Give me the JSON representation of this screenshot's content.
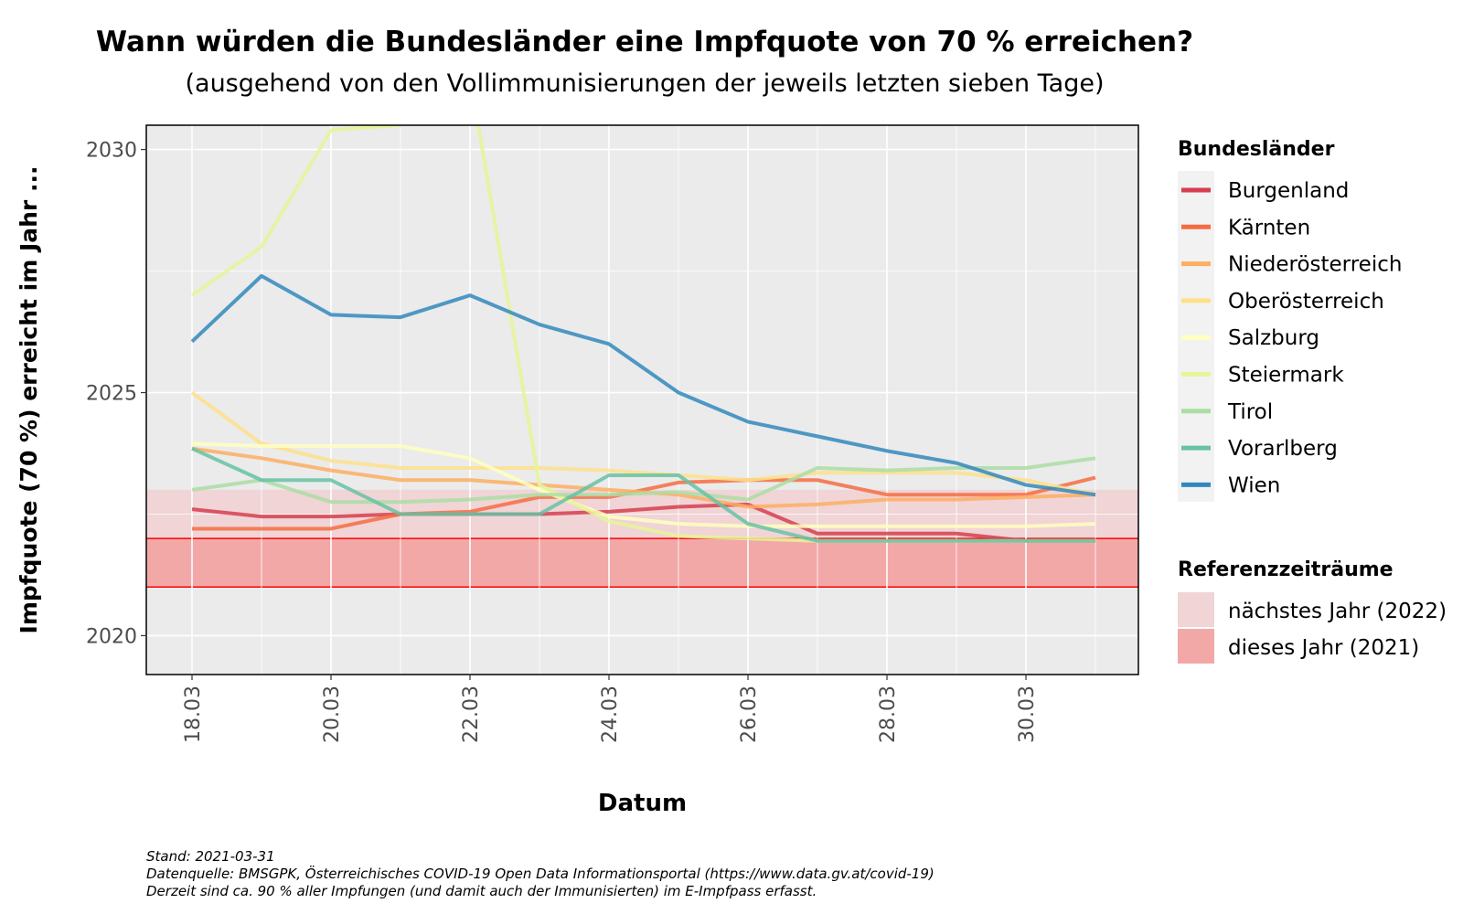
{
  "chart_data": {
    "type": "line",
    "title": "Wann würden die Bundesländer eine Impfquote von 70 % erreichen?",
    "subtitle": "(ausgehend von den Vollimmunisierungen der jeweils letzten sieben Tage)",
    "xlabel": "Datum",
    "ylabel": "Impfquote (70 %) erreicht im Jahr ...",
    "x": [
      "18.03",
      "19.03",
      "20.03",
      "21.03",
      "22.03",
      "23.03",
      "24.03",
      "25.03",
      "26.03",
      "27.03",
      "28.03",
      "29.03",
      "30.03",
      "31.03"
    ],
    "x_ticks": [
      "18.03",
      "20.03",
      "22.03",
      "24.03",
      "26.03",
      "28.03",
      "30.03"
    ],
    "ylim": [
      2019.2,
      2030.5
    ],
    "y_ticks": [
      2020,
      2025,
      2030
    ],
    "grid": true,
    "legend_title": "Bundesländer",
    "legend_position": "right",
    "series": [
      {
        "name": "Burgenland",
        "color": "#d53e4f",
        "values": [
          2022.6,
          2022.45,
          2022.45,
          2022.5,
          2022.5,
          2022.5,
          2022.55,
          2022.65,
          2022.7,
          2022.1,
          2022.1,
          2022.1,
          2021.95,
          2021.95
        ]
      },
      {
        "name": "Kärnten",
        "color": "#f46d43",
        "values": [
          2022.2,
          2022.2,
          2022.2,
          2022.5,
          2022.55,
          2022.85,
          2022.85,
          2023.15,
          2023.2,
          2023.2,
          2022.9,
          2022.9,
          2022.9,
          2023.25
        ]
      },
      {
        "name": "Niederösterreich",
        "color": "#fdae61",
        "values": [
          2023.85,
          2023.65,
          2023.4,
          2023.2,
          2023.2,
          2023.1,
          2023.0,
          2022.9,
          2022.65,
          2022.7,
          2022.8,
          2022.8,
          2022.85,
          2022.9
        ]
      },
      {
        "name": "Oberösterreich",
        "color": "#fee08b",
        "values": [
          2025.0,
          2023.95,
          2023.6,
          2023.45,
          2023.45,
          2023.45,
          2023.4,
          2023.3,
          2023.2,
          2023.35,
          2023.35,
          2023.35,
          2023.2,
          2022.9
        ]
      },
      {
        "name": "Salzburg",
        "color": "#ffffbf",
        "values": [
          2023.95,
          2023.9,
          2023.9,
          2023.9,
          2023.65,
          2023.0,
          2022.45,
          2022.3,
          2022.25,
          2022.25,
          2022.25,
          2022.25,
          2022.25,
          2022.3
        ]
      },
      {
        "name": "Steiermark",
        "color": "#e6f598",
        "values": [
          2027.0,
          2028.0,
          2030.4,
          2030.5,
          2031.5,
          2023.1,
          2022.35,
          2022.05,
          2022.0,
          2021.95,
          2021.95,
          2021.95,
          2021.95,
          2021.95
        ]
      },
      {
        "name": "Tirol",
        "color": "#abdda4",
        "values": [
          2023.0,
          2023.2,
          2022.75,
          2022.75,
          2022.8,
          2022.9,
          2022.9,
          2022.95,
          2022.8,
          2023.45,
          2023.4,
          2023.45,
          2023.45,
          2023.65
        ]
      },
      {
        "name": "Vorarlberg",
        "color": "#66c2a5",
        "values": [
          2023.85,
          2023.2,
          2023.2,
          2022.5,
          2022.5,
          2022.5,
          2023.3,
          2023.3,
          2022.3,
          2021.95,
          2021.95,
          2021.95,
          2021.95,
          2021.95
        ]
      },
      {
        "name": "Wien",
        "color": "#3288bd",
        "values": [
          2026.05,
          2027.4,
          2026.6,
          2026.55,
          2027.0,
          2026.4,
          2026.0,
          2025.0,
          2024.4,
          2024.1,
          2023.8,
          2023.55,
          2023.1,
          2022.9
        ]
      }
    ],
    "reference_bands": {
      "title": "Referenzzeiträume",
      "items": [
        {
          "name": "nächstes Jahr (2022)",
          "from": 2022,
          "to": 2023,
          "color": "#f0d4d6"
        },
        {
          "name": "dieses Jahr (2021)",
          "from": 2021,
          "to": 2022,
          "color": "#f3a8a8",
          "line_color": "#ff0000"
        }
      ]
    },
    "caption": [
      "Stand: 2021-03-31",
      "Datenquelle: BMSGPK, Österreichisches COVID-19 Open Data Informationsportal (https://www.data.gv.at/covid-19)",
      "Derzeit sind ca. 90 % aller Impfungen (und damit auch der Immunisierten) im E-Impfpass erfasst."
    ]
  }
}
